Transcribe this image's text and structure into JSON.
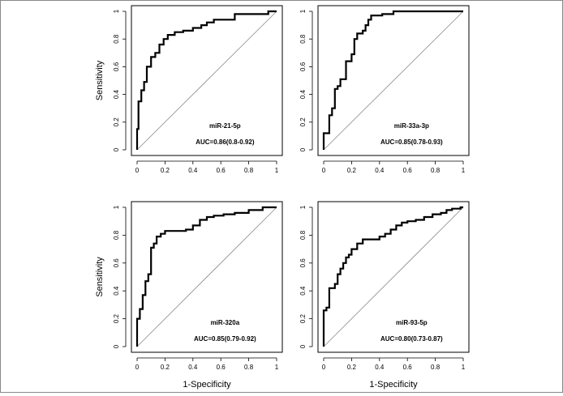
{
  "figure": {
    "shared_ylabel": "Sensitivity",
    "shared_xlabel": "1-Specificity"
  },
  "chart_data": [
    {
      "type": "line",
      "panel": "top-left",
      "title": "miR-21-5p",
      "auc_label": "AUC=0.86(0.8-0.92)",
      "xlabel": "",
      "ylabel": "Sensitivity",
      "xlim": [
        0,
        1
      ],
      "ylim": [
        0,
        1
      ],
      "xticks": [
        "0",
        "0.2",
        "0.4",
        "0.6",
        "0.8",
        "1"
      ],
      "yticks": [
        "0",
        "0.2",
        "0.4",
        "0.6",
        "0.8",
        "1"
      ],
      "reference_line": {
        "from": [
          0,
          0
        ],
        "to": [
          1,
          1
        ]
      },
      "series": [
        {
          "name": "ROC",
          "x": [
            0,
            0,
            0.01,
            0.01,
            0.03,
            0.03,
            0.05,
            0.05,
            0.07,
            0.07,
            0.1,
            0.1,
            0.13,
            0.13,
            0.16,
            0.16,
            0.19,
            0.19,
            0.22,
            0.22,
            0.27,
            0.27,
            0.33,
            0.33,
            0.4,
            0.4,
            0.46,
            0.46,
            0.5,
            0.5,
            0.55,
            0.55,
            0.7,
            0.7,
            0.94,
            0.94,
            1
          ],
          "y": [
            0,
            0.15,
            0.15,
            0.35,
            0.35,
            0.43,
            0.43,
            0.49,
            0.49,
            0.6,
            0.6,
            0.67,
            0.67,
            0.7,
            0.7,
            0.76,
            0.76,
            0.8,
            0.8,
            0.83,
            0.83,
            0.85,
            0.85,
            0.86,
            0.86,
            0.88,
            0.88,
            0.9,
            0.9,
            0.92,
            0.92,
            0.94,
            0.94,
            0.98,
            0.98,
            1,
            1
          ]
        }
      ]
    },
    {
      "type": "line",
      "panel": "top-right",
      "title": "miR-33a-3p",
      "auc_label": "AUC=0.85(0.78-0.93)",
      "xlabel": "",
      "ylabel": "",
      "xlim": [
        0,
        1
      ],
      "ylim": [
        0,
        1
      ],
      "xticks": [
        "0",
        "0.2",
        "0.4",
        "0.6",
        "0.8",
        "1"
      ],
      "yticks": [
        "0",
        "0.2",
        "0.4",
        "0.6",
        "0.8",
        "1"
      ],
      "reference_line": {
        "from": [
          0,
          0
        ],
        "to": [
          1,
          1
        ]
      },
      "series": [
        {
          "name": "ROC",
          "x": [
            0,
            0,
            0.04,
            0.04,
            0.06,
            0.06,
            0.08,
            0.08,
            0.1,
            0.1,
            0.12,
            0.12,
            0.16,
            0.16,
            0.2,
            0.2,
            0.22,
            0.22,
            0.24,
            0.24,
            0.28,
            0.28,
            0.3,
            0.3,
            0.32,
            0.32,
            0.34,
            0.34,
            0.42,
            0.42,
            0.5,
            0.5,
            1
          ],
          "y": [
            0,
            0.12,
            0.12,
            0.25,
            0.25,
            0.3,
            0.3,
            0.44,
            0.44,
            0.46,
            0.46,
            0.51,
            0.51,
            0.64,
            0.64,
            0.69,
            0.69,
            0.8,
            0.8,
            0.84,
            0.84,
            0.86,
            0.86,
            0.9,
            0.9,
            0.94,
            0.94,
            0.97,
            0.97,
            0.98,
            0.98,
            1,
            1
          ]
        }
      ]
    },
    {
      "type": "line",
      "panel": "bottom-left",
      "title": "miR-320a",
      "auc_label": "AUC=0.85(0.79-0.92)",
      "xlabel": "1-Specificity",
      "ylabel": "Sensitivity",
      "xlim": [
        0,
        1
      ],
      "ylim": [
        0,
        1
      ],
      "xticks": [
        "0",
        "0.2",
        "0.4",
        "0.6",
        "0.8",
        "1"
      ],
      "yticks": [
        "0",
        "0.2",
        "0.4",
        "0.6",
        "0.8",
        "1"
      ],
      "reference_line": {
        "from": [
          0,
          0
        ],
        "to": [
          1,
          1
        ]
      },
      "series": [
        {
          "name": "ROC",
          "x": [
            0,
            0,
            0.02,
            0.02,
            0.04,
            0.04,
            0.06,
            0.06,
            0.08,
            0.08,
            0.1,
            0.1,
            0.12,
            0.12,
            0.14,
            0.14,
            0.17,
            0.17,
            0.2,
            0.2,
            0.35,
            0.35,
            0.4,
            0.4,
            0.45,
            0.45,
            0.5,
            0.5,
            0.55,
            0.55,
            0.62,
            0.62,
            0.7,
            0.7,
            0.8,
            0.8,
            0.9,
            0.9,
            1
          ],
          "y": [
            0,
            0.2,
            0.2,
            0.27,
            0.27,
            0.37,
            0.37,
            0.47,
            0.47,
            0.52,
            0.52,
            0.71,
            0.71,
            0.74,
            0.74,
            0.79,
            0.79,
            0.81,
            0.81,
            0.83,
            0.83,
            0.84,
            0.84,
            0.87,
            0.87,
            0.91,
            0.91,
            0.93,
            0.93,
            0.94,
            0.94,
            0.95,
            0.95,
            0.96,
            0.96,
            0.98,
            0.98,
            1,
            1
          ]
        }
      ]
    },
    {
      "type": "line",
      "panel": "bottom-right",
      "title": "miR-93-5p",
      "auc_label": "AUC=0.80(0.73-0.87)",
      "xlabel": "1-Specificity",
      "ylabel": "",
      "xlim": [
        0,
        1
      ],
      "ylim": [
        0,
        1
      ],
      "xticks": [
        "0",
        "0.2",
        "0.4",
        "0.6",
        "0.8",
        "1"
      ],
      "yticks": [
        "0",
        "0.2",
        "0.4",
        "0.6",
        "0.8",
        "1"
      ],
      "reference_line": {
        "from": [
          0,
          0
        ],
        "to": [
          1,
          1
        ]
      },
      "series": [
        {
          "name": "ROC",
          "x": [
            0,
            0,
            0.02,
            0.02,
            0.04,
            0.04,
            0.08,
            0.08,
            0.1,
            0.1,
            0.12,
            0.12,
            0.14,
            0.14,
            0.16,
            0.16,
            0.18,
            0.18,
            0.2,
            0.2,
            0.24,
            0.24,
            0.28,
            0.28,
            0.4,
            0.4,
            0.44,
            0.44,
            0.48,
            0.48,
            0.52,
            0.52,
            0.56,
            0.56,
            0.6,
            0.6,
            0.66,
            0.66,
            0.72,
            0.72,
            0.78,
            0.78,
            0.84,
            0.84,
            0.88,
            0.88,
            0.92,
            0.92,
            0.98,
            0.98,
            1
          ],
          "y": [
            0,
            0.26,
            0.26,
            0.28,
            0.28,
            0.42,
            0.42,
            0.45,
            0.45,
            0.52,
            0.52,
            0.56,
            0.56,
            0.6,
            0.6,
            0.64,
            0.64,
            0.66,
            0.66,
            0.7,
            0.7,
            0.74,
            0.74,
            0.77,
            0.77,
            0.79,
            0.79,
            0.81,
            0.81,
            0.84,
            0.84,
            0.87,
            0.87,
            0.89,
            0.89,
            0.9,
            0.9,
            0.91,
            0.91,
            0.93,
            0.93,
            0.95,
            0.95,
            0.96,
            0.96,
            0.98,
            0.98,
            0.99,
            0.99,
            1,
            1
          ]
        }
      ]
    }
  ]
}
